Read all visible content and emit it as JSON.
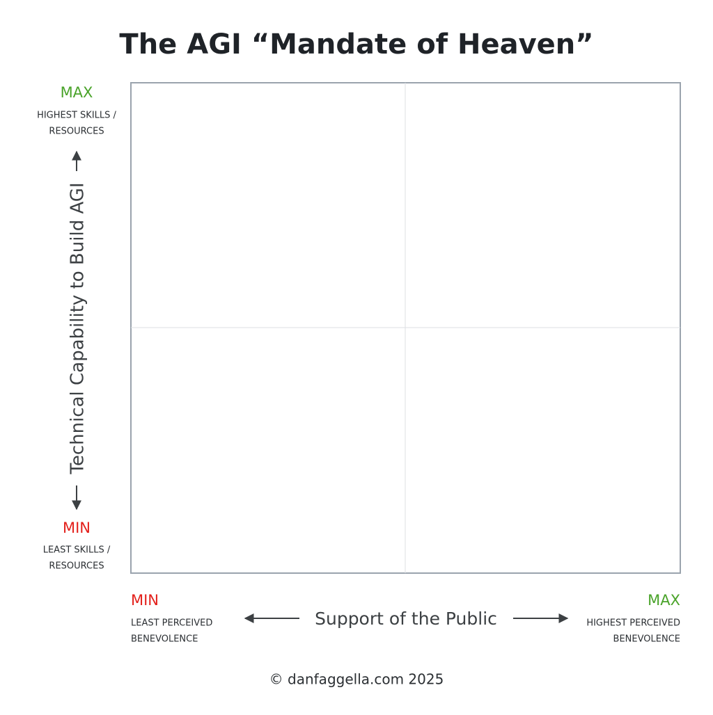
{
  "title": "The AGI “Mandate of Heaven”",
  "y_axis": {
    "label": "Technical Capability to Build AGI",
    "max": {
      "label": "MAX",
      "description": [
        "HIGHEST SKILLS /",
        "RESOURCES"
      ]
    },
    "min": {
      "label": "MIN",
      "description": [
        "LEAST SKILLS /",
        "RESOURCES"
      ]
    }
  },
  "x_axis": {
    "label": "Support of the Public",
    "min": {
      "label": "MIN",
      "description": [
        "LEAST PERCEIVED",
        "BENEVOLENCE"
      ]
    },
    "max": {
      "label": "MAX",
      "description": [
        "HIGHEST PERCEIVED",
        "BENEVOLENCE"
      ]
    }
  },
  "footer": "© danfaggella.com 2025"
}
